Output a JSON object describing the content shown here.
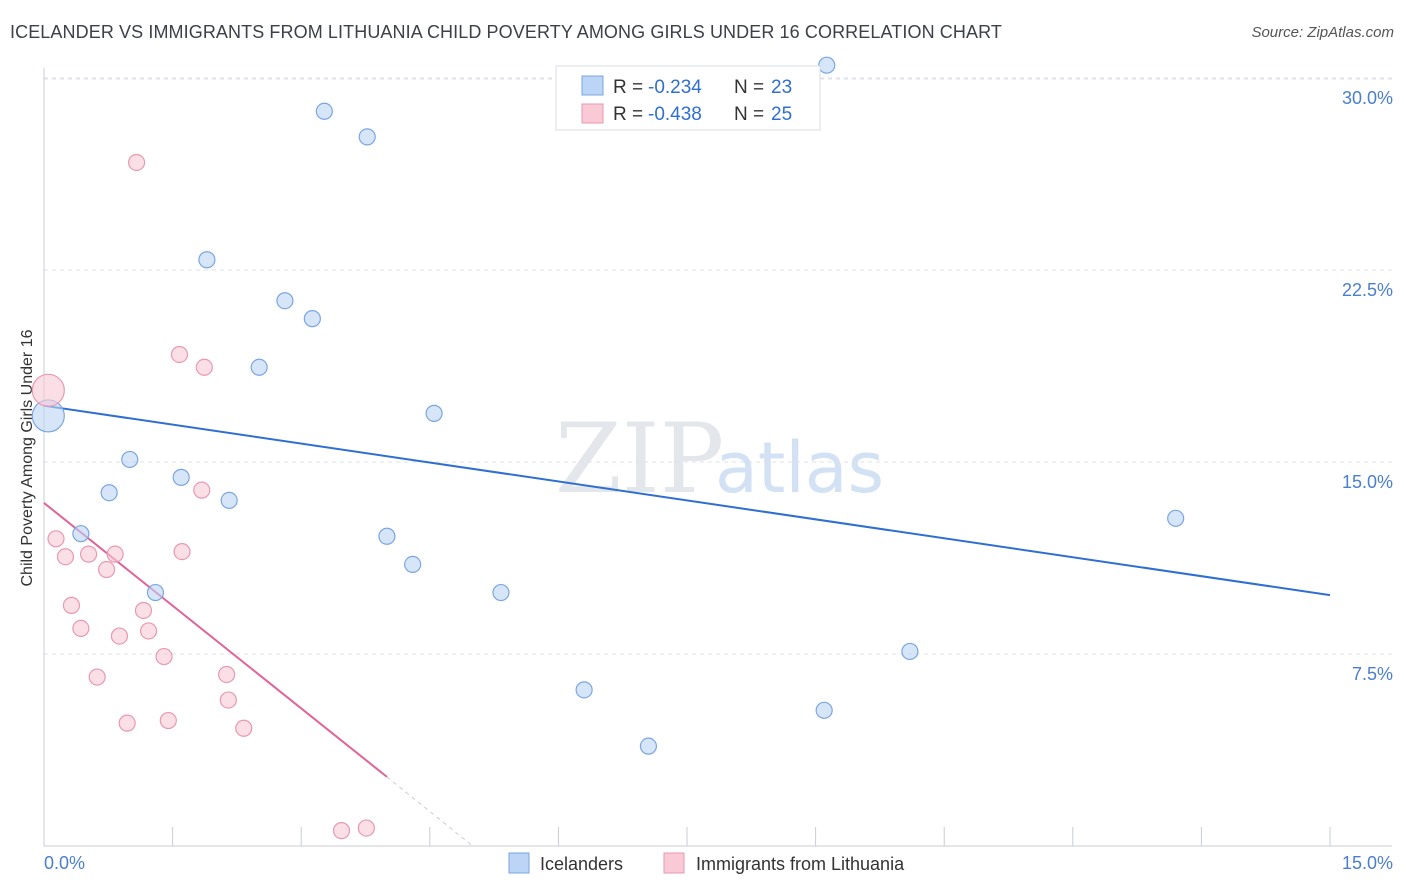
{
  "title": "ICELANDER VS IMMIGRANTS FROM LITHUANIA CHILD POVERTY AMONG GIRLS UNDER 16 CORRELATION CHART",
  "source": "Source: ZipAtlas.com",
  "watermark": {
    "zip": "ZIP",
    "atlas": "atlas"
  },
  "colors": {
    "blue_fill": "#bcd4f5",
    "blue_stroke": "#7aa6e0",
    "blue_line": "#2f6fd0",
    "pink_fill": "#f9c9d6",
    "pink_stroke": "#e899b1",
    "pink_line": "#e0649a",
    "grid": "#dde2ea",
    "tick_label": "#4a7fcc"
  },
  "legend": {
    "r_label": "R =",
    "n_label": "N =",
    "rows": [
      {
        "r": "-0.234",
        "n": "23"
      },
      {
        "r": "-0.438",
        "n": "25"
      }
    ]
  },
  "chart_data": {
    "type": "scatter",
    "title": "ICELANDER VS IMMIGRANTS FROM LITHUANIA CHILD POVERTY AMONG GIRLS UNDER 16 CORRELATION CHART",
    "xlabel": "",
    "ylabel": "Child Poverty Among Girls Under 16",
    "xlim": [
      0,
      15
    ],
    "ylim": [
      0,
      30
    ],
    "x_tick_labels": [
      "0.0%",
      "15.0%"
    ],
    "y_ticks": [
      7.5,
      15.0,
      22.5,
      30.0
    ],
    "y_tick_labels": [
      "7.5%",
      "15.0%",
      "22.5%",
      "30.0%"
    ],
    "series": [
      {
        "name": "Icelanders",
        "color": "blue",
        "points": [
          {
            "x": 0.05,
            "y": 16.8,
            "big": true
          },
          {
            "x": 3.27,
            "y": 28.7
          },
          {
            "x": 3.77,
            "y": 27.7
          },
          {
            "x": 9.13,
            "y": 30.5
          },
          {
            "x": 1.9,
            "y": 22.9
          },
          {
            "x": 2.81,
            "y": 21.3
          },
          {
            "x": 3.13,
            "y": 20.6
          },
          {
            "x": 2.51,
            "y": 18.7
          },
          {
            "x": 4.55,
            "y": 16.9
          },
          {
            "x": 1.0,
            "y": 15.1
          },
          {
            "x": 0.76,
            "y": 13.8
          },
          {
            "x": 1.6,
            "y": 14.4
          },
          {
            "x": 2.16,
            "y": 13.5
          },
          {
            "x": 0.43,
            "y": 12.2
          },
          {
            "x": 4.0,
            "y": 12.1
          },
          {
            "x": 4.3,
            "y": 11.0
          },
          {
            "x": 1.3,
            "y": 9.9
          },
          {
            "x": 5.33,
            "y": 9.9
          },
          {
            "x": 13.2,
            "y": 12.8
          },
          {
            "x": 10.1,
            "y": 7.6
          },
          {
            "x": 6.3,
            "y": 6.1
          },
          {
            "x": 9.1,
            "y": 5.3
          },
          {
            "x": 7.05,
            "y": 3.9
          }
        ],
        "trend": {
          "x0": 0.0,
          "y0": 17.2,
          "x1": 15.0,
          "y1": 9.8
        }
      },
      {
        "name": "Immigrants from Lithuania",
        "color": "pink",
        "points": [
          {
            "x": 0.05,
            "y": 17.8,
            "big": true
          },
          {
            "x": 1.08,
            "y": 26.7
          },
          {
            "x": 1.58,
            "y": 19.2
          },
          {
            "x": 1.87,
            "y": 18.7
          },
          {
            "x": 1.84,
            "y": 13.9
          },
          {
            "x": 0.14,
            "y": 12.0
          },
          {
            "x": 0.25,
            "y": 11.3
          },
          {
            "x": 0.52,
            "y": 11.4
          },
          {
            "x": 0.83,
            "y": 11.4
          },
          {
            "x": 0.73,
            "y": 10.8
          },
          {
            "x": 1.61,
            "y": 11.5
          },
          {
            "x": 0.32,
            "y": 9.4
          },
          {
            "x": 1.16,
            "y": 9.2
          },
          {
            "x": 0.43,
            "y": 8.5
          },
          {
            "x": 0.88,
            "y": 8.2
          },
          {
            "x": 1.22,
            "y": 8.4
          },
          {
            "x": 1.4,
            "y": 7.4
          },
          {
            "x": 0.62,
            "y": 6.6
          },
          {
            "x": 2.13,
            "y": 6.7
          },
          {
            "x": 2.15,
            "y": 5.7
          },
          {
            "x": 0.97,
            "y": 4.8
          },
          {
            "x": 1.45,
            "y": 4.9
          },
          {
            "x": 2.33,
            "y": 4.6
          },
          {
            "x": 3.47,
            "y": 0.6
          },
          {
            "x": 3.76,
            "y": 0.7
          }
        ],
        "trend": {
          "x0": 0.0,
          "y0": 13.4,
          "x1": 4.0,
          "y1": 2.7
        },
        "trend_dashed": {
          "x0": 4.0,
          "y0": 2.7,
          "x1": 5.0,
          "y1": 0.0
        }
      }
    ]
  }
}
